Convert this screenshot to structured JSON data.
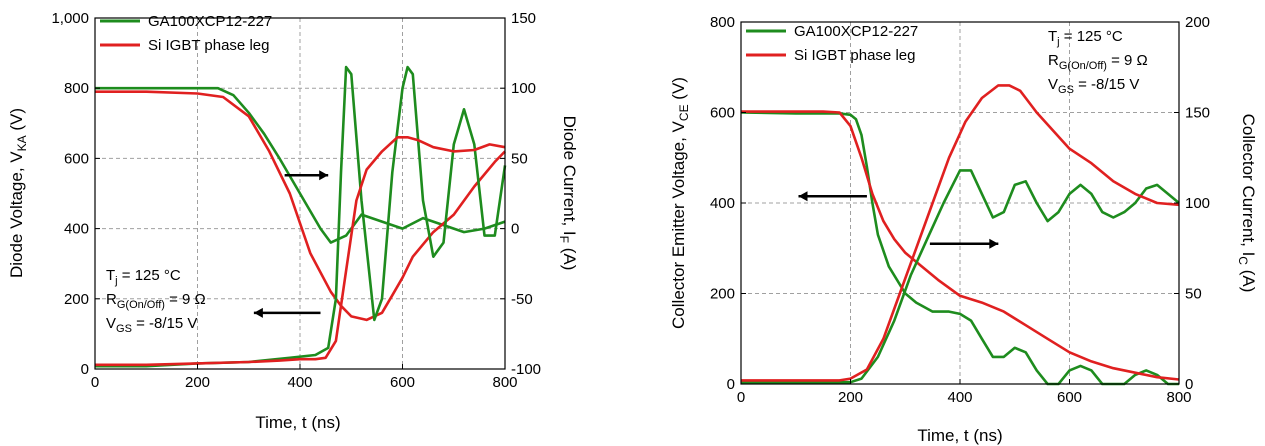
{
  "chart_data": [
    {
      "type": "line",
      "xlabel": "Time, t (ns)",
      "ylabel": "Diode Voltage, VKA (V)",
      "ylabel_main": "Diode Voltage, V",
      "ylabel_sub": "KA",
      "ylabel_tail": " (V)",
      "y2label_main": "Diode Current, I",
      "y2label_sub": "F",
      "y2label_tail": " (A)",
      "xlim": [
        0,
        800
      ],
      "ylim": [
        0,
        1000
      ],
      "y2lim": [
        -100,
        150
      ],
      "xticks": [
        0,
        200,
        400,
        600,
        800
      ],
      "xtick_labels": [
        "0",
        "200",
        "400",
        "600",
        "800"
      ],
      "yticks": [
        0,
        200,
        400,
        600,
        800,
        1000
      ],
      "ytick_labels": [
        "0",
        "200",
        "400",
        "600",
        "800",
        "1,000"
      ],
      "y2ticks": [
        -100,
        -50,
        0,
        50,
        100,
        150
      ],
      "y2tick_labels": [
        "-100",
        "-50",
        "0",
        "50",
        "100",
        "150"
      ],
      "grid": true,
      "legend_position": "top-left",
      "annotation": {
        "line1_main": "T",
        "line1_sub": "j",
        "line1_tail": " = 125 °C",
        "line2_main": "R",
        "line2_sub": "G(On/Off)",
        "line2_tail": " = 9 Ω",
        "line3_main": "V",
        "line3_sub": "GS",
        "line3_tail": " = -8/15 V"
      },
      "arrows": [
        {
          "axis": "right",
          "from": [
            370,
            38
          ],
          "to": [
            455,
            38
          ]
        },
        {
          "axis": "left",
          "from": [
            440,
            160
          ],
          "to": [
            310,
            160
          ]
        }
      ],
      "series": [
        {
          "name": "GA100XCP12-227",
          "color": "#1e8c1e",
          "axis": "left",
          "x": [
            0,
            100,
            200,
            240,
            270,
            300,
            330,
            360,
            400,
            440,
            460,
            490,
            520,
            560,
            600,
            640,
            680,
            720,
            760,
            800
          ],
          "y": [
            800,
            800,
            800,
            800,
            780,
            730,
            670,
            600,
            500,
            400,
            360,
            380,
            440,
            420,
            400,
            430,
            410,
            390,
            400,
            420
          ]
        },
        {
          "name": "Si IGBT phase leg",
          "color": "#e02020",
          "axis": "left",
          "x": [
            0,
            100,
            200,
            250,
            300,
            340,
            380,
            420,
            460,
            480,
            500,
            530,
            560,
            580,
            600,
            620,
            660,
            700,
            740,
            780,
            800
          ],
          "y": [
            790,
            790,
            785,
            775,
            720,
            620,
            500,
            330,
            220,
            180,
            150,
            140,
            160,
            210,
            260,
            320,
            390,
            440,
            520,
            590,
            620
          ]
        },
        {
          "name": "GA100XCP12-227 current",
          "color": "#1e8c1e",
          "axis": "right",
          "x": [
            0,
            100,
            200,
            300,
            380,
            430,
            455,
            470,
            480,
            490,
            500,
            520,
            545,
            560,
            580,
            600,
            610,
            620,
            640,
            660,
            680,
            700,
            720,
            740,
            760,
            780,
            800
          ],
          "y": [
            -98,
            -98,
            -96,
            -95,
            -92,
            -90,
            -85,
            -50,
            40,
            115,
            110,
            20,
            -65,
            -50,
            40,
            100,
            115,
            110,
            20,
            -20,
            -10,
            60,
            85,
            60,
            -5,
            -5,
            45
          ]
        },
        {
          "name": "Si IGBT phase leg current",
          "color": "#e02020",
          "axis": "right",
          "x": [
            0,
            100,
            200,
            300,
            360,
            400,
            430,
            450,
            470,
            490,
            510,
            530,
            560,
            590,
            610,
            630,
            660,
            700,
            740,
            770,
            800
          ],
          "y": [
            -97,
            -97,
            -96,
            -95,
            -94,
            -93,
            -93,
            -92,
            -80,
            -30,
            20,
            42,
            55,
            65,
            65,
            63,
            58,
            55,
            56,
            60,
            58
          ]
        }
      ]
    },
    {
      "type": "line",
      "xlabel": "Time, t (ns)",
      "ylabel": "Collector Emitter Voltage, VCE (V)",
      "ylabel_main": "Collector Emitter Voltage, V",
      "ylabel_sub": "CE",
      "ylabel_tail": " (V)",
      "y2label_main": "Collector Current, I",
      "y2label_sub": "C",
      "y2label_tail": " (A)",
      "xlim": [
        0,
        800
      ],
      "ylim": [
        0,
        800
      ],
      "y2lim": [
        0,
        200
      ],
      "xticks": [
        0,
        200,
        400,
        600,
        800
      ],
      "xtick_labels": [
        "0",
        "200",
        "400",
        "600",
        "800"
      ],
      "yticks": [
        0,
        200,
        400,
        600,
        800
      ],
      "ytick_labels": [
        "0",
        "200",
        "400",
        "600",
        "800"
      ],
      "y2ticks": [
        0,
        50,
        100,
        150,
        200
      ],
      "y2tick_labels": [
        "0",
        "50",
        "100",
        "150",
        "200"
      ],
      "grid": true,
      "legend_position": "top-left",
      "annotation": {
        "line1_main": "T",
        "line1_sub": "j",
        "line1_tail": " = 125 °C",
        "line2_main": "R",
        "line2_sub": "G(On/Off)",
        "line2_tail": " = 9 Ω",
        "line3_main": "V",
        "line3_sub": "GS",
        "line3_tail": " = -8/15 V"
      },
      "arrows": [
        {
          "axis": "left",
          "from": [
            230,
            415
          ],
          "to": [
            105,
            415
          ]
        },
        {
          "axis": "left",
          "from": [
            345,
            310
          ],
          "to": [
            470,
            310
          ]
        }
      ],
      "series": [
        {
          "name": "GA100XCP12-227",
          "color": "#1e8c1e",
          "axis": "left",
          "x": [
            0,
            100,
            150,
            180,
            200,
            210,
            220,
            230,
            240,
            250,
            270,
            300,
            320,
            350,
            380,
            400,
            420,
            440,
            460,
            480,
            500,
            520,
            540,
            560,
            580,
            600,
            620,
            640,
            660,
            680,
            700,
            720,
            740,
            760,
            780,
            800
          ],
          "y": [
            600,
            598,
            598,
            598,
            595,
            585,
            550,
            480,
            400,
            330,
            260,
            200,
            180,
            160,
            160,
            155,
            140,
            100,
            60,
            60,
            80,
            70,
            30,
            0,
            0,
            30,
            40,
            30,
            0,
            0,
            0,
            20,
            30,
            20,
            0,
            0
          ]
        },
        {
          "name": "Si IGBT phase leg",
          "color": "#e02020",
          "axis": "left",
          "x": [
            0,
            100,
            150,
            180,
            200,
            220,
            240,
            260,
            280,
            300,
            330,
            360,
            400,
            440,
            480,
            520,
            560,
            600,
            640,
            680,
            720,
            760,
            800
          ],
          "y": [
            602,
            602,
            602,
            600,
            570,
            500,
            420,
            360,
            320,
            290,
            260,
            230,
            195,
            180,
            160,
            130,
            100,
            70,
            50,
            35,
            25,
            15,
            10
          ]
        },
        {
          "name": "GA100XCP12-227 current",
          "color": "#1e8c1e",
          "axis": "right",
          "x": [
            0,
            100,
            150,
            180,
            200,
            220,
            250,
            280,
            310,
            340,
            370,
            390,
            400,
            420,
            440,
            460,
            480,
            500,
            520,
            540,
            560,
            580,
            600,
            620,
            640,
            660,
            680,
            700,
            720,
            740,
            760,
            780,
            800
          ],
          "y": [
            1,
            1,
            1,
            1,
            1,
            3,
            15,
            35,
            60,
            80,
            100,
            112,
            118,
            118,
            105,
            92,
            95,
            110,
            112,
            100,
            90,
            95,
            105,
            110,
            105,
            95,
            92,
            95,
            100,
            108,
            110,
            105,
            100
          ]
        },
        {
          "name": "Si IGBT phase leg current",
          "color": "#e02020",
          "axis": "right",
          "x": [
            0,
            100,
            150,
            180,
            200,
            230,
            260,
            290,
            320,
            350,
            380,
            410,
            440,
            470,
            490,
            510,
            520,
            540,
            570,
            600,
            640,
            680,
            720,
            760,
            800
          ],
          "y": [
            2,
            2,
            2,
            2,
            3,
            8,
            25,
            50,
            75,
            100,
            125,
            145,
            158,
            165,
            165,
            162,
            158,
            150,
            140,
            130,
            122,
            112,
            105,
            100,
            99
          ]
        }
      ]
    }
  ]
}
